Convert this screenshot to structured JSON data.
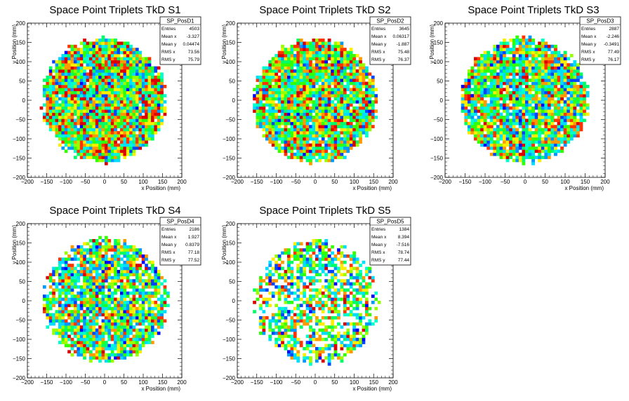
{
  "canvas": {
    "background": "#ffffff"
  },
  "palette": [
    "#0000ff",
    "#0044ff",
    "#0099ff",
    "#00ddff",
    "#00ffcc",
    "#00ff66",
    "#33ff00",
    "#99ff00",
    "#ffee00",
    "#ff9900",
    "#ff3300",
    "#dd0000"
  ],
  "chart_data": [
    {
      "type": "heatmap",
      "title": "Space Point Triplets TkD S1",
      "xlabel": "x Position (mm)",
      "ylabel": "y Position (mm)",
      "xlim": [
        -200,
        200
      ],
      "ylim": [
        -200,
        200
      ],
      "xticks": [
        "−200",
        "−150",
        "−100",
        "−50",
        "0",
        "50",
        "100",
        "150",
        "200"
      ],
      "yticks": [
        "200",
        "150",
        "100",
        "50",
        "0",
        "−50",
        "−100",
        "−150",
        "−200"
      ],
      "stats": {
        "name": "SP_PosD1",
        "rows": [
          {
            "label": "Entries",
            "value": "4503"
          },
          {
            "label": "Mean x",
            "value": "-3.327"
          },
          {
            "label": "Mean y",
            "value": "0.04474"
          },
          {
            "label": "RMS x",
            "value": "73.56"
          },
          {
            "label": "RMS y",
            "value": "75.79"
          }
        ]
      },
      "entries": 4503,
      "mean_x": -3.327,
      "mean_y": 0.04474,
      "rms_x": 73.56,
      "rms_y": 75.79,
      "radius": 160,
      "bin_width": 8,
      "fill_fraction": 0.99,
      "intensity": 0.5
    },
    {
      "type": "heatmap",
      "title": "Space Point Triplets TkD S2",
      "xlabel": "x Position (mm)",
      "ylabel": "y Position (mm)",
      "xlim": [
        -200,
        200
      ],
      "ylim": [
        -200,
        200
      ],
      "xticks": [
        "−200",
        "−150",
        "−100",
        "−50",
        "0",
        "50",
        "100",
        "150",
        "200"
      ],
      "yticks": [
        "200",
        "150",
        "100",
        "50",
        "0",
        "−50",
        "−100",
        "−150",
        "−200"
      ],
      "stats": {
        "name": "SP_PosD2",
        "rows": [
          {
            "label": "Entries",
            "value": "3645"
          },
          {
            "label": "Mean x",
            "value": "0.06317"
          },
          {
            "label": "Mean y",
            "value": "-1.887"
          },
          {
            "label": "RMS x",
            "value": "75.48"
          },
          {
            "label": "RMS y",
            "value": "76.37"
          }
        ]
      },
      "entries": 3645,
      "mean_x": 0.06317,
      "mean_y": -1.887,
      "rms_x": 75.48,
      "rms_y": 76.37,
      "radius": 160,
      "bin_width": 8,
      "fill_fraction": 0.97,
      "intensity": 0.45
    },
    {
      "type": "heatmap",
      "title": "Space Point Triplets TkD S3",
      "xlabel": "x Position (mm)",
      "ylabel": "y Position (mm)",
      "xlim": [
        -200,
        200
      ],
      "ylim": [
        -200,
        200
      ],
      "xticks": [
        "−200",
        "−150",
        "−100",
        "−50",
        "0",
        "50",
        "100",
        "150",
        "200"
      ],
      "yticks": [
        "200",
        "150",
        "100",
        "50",
        "0",
        "−50",
        "−100",
        "−150",
        "−200"
      ],
      "stats": {
        "name": "SP_PosD3",
        "rows": [
          {
            "label": "Entries",
            "value": "2887"
          },
          {
            "label": "Mean x",
            "value": "-2.246"
          },
          {
            "label": "Mean y",
            "value": "-0.3491"
          },
          {
            "label": "RMS x",
            "value": "77.49"
          },
          {
            "label": "RMS y",
            "value": "76.17"
          }
        ]
      },
      "entries": 2887,
      "mean_x": -2.246,
      "mean_y": -0.3491,
      "rms_x": 77.49,
      "rms_y": 76.17,
      "radius": 160,
      "bin_width": 8,
      "fill_fraction": 0.93,
      "intensity": 0.36
    },
    {
      "type": "heatmap",
      "title": "Space Point Triplets TkD S4",
      "xlabel": "x Position (mm)",
      "ylabel": "y Position (mm)",
      "xlim": [
        -200,
        200
      ],
      "ylim": [
        -200,
        200
      ],
      "xticks": [
        "−200",
        "−150",
        "−100",
        "−50",
        "0",
        "50",
        "100",
        "150",
        "200"
      ],
      "yticks": [
        "200",
        "150",
        "100",
        "50",
        "0",
        "−50",
        "−100",
        "−150",
        "−200"
      ],
      "stats": {
        "name": "SP_PosD4",
        "rows": [
          {
            "label": "Entries",
            "value": "2186"
          },
          {
            "label": "Mean x",
            "value": "1.927"
          },
          {
            "label": "Mean y",
            "value": "0.8379"
          },
          {
            "label": "RMS x",
            "value": "77.18"
          },
          {
            "label": "RMS y",
            "value": "77.52"
          }
        ]
      },
      "entries": 2186,
      "mean_x": 1.927,
      "mean_y": 0.8379,
      "rms_x": 77.18,
      "rms_y": 77.52,
      "radius": 160,
      "bin_width": 8,
      "fill_fraction": 0.88,
      "intensity": 0.3
    },
    {
      "type": "heatmap",
      "title": "Space Point Triplets TkD S5",
      "xlabel": "x Position (mm)",
      "ylabel": "y Position (mm)",
      "xlim": [
        -200,
        200
      ],
      "ylim": [
        -200,
        200
      ],
      "xticks": [
        "−200",
        "−150",
        "−100",
        "−50",
        "0",
        "50",
        "100",
        "150",
        "200"
      ],
      "yticks": [
        "200",
        "150",
        "100",
        "50",
        "0",
        "−50",
        "−100",
        "−150",
        "−200"
      ],
      "stats": {
        "name": "SP_PosD5",
        "rows": [
          {
            "label": "Entries",
            "value": "1384"
          },
          {
            "label": "Mean x",
            "value": "8.394"
          },
          {
            "label": "Mean y",
            "value": "-7.516"
          },
          {
            "label": "RMS x",
            "value": "78.74"
          },
          {
            "label": "RMS y",
            "value": "77.44"
          }
        ]
      },
      "entries": 1384,
      "mean_x": 8.394,
      "mean_y": -7.516,
      "rms_x": 78.74,
      "rms_y": 77.44,
      "radius": 160,
      "bin_width": 8,
      "fill_fraction": 0.62,
      "intensity": 0.28
    }
  ]
}
